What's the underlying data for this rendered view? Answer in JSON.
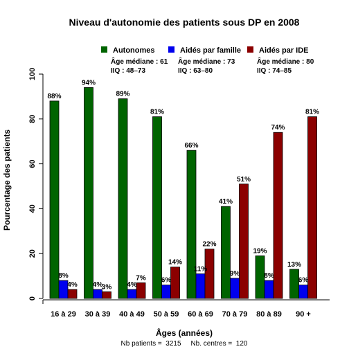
{
  "chart_data": {
    "type": "bar",
    "title": "Niveau d'autonomie des patients sous DP en 2008",
    "xlabel": "Âges (années)",
    "ylabel": "Pourcentage des patients",
    "ylim": [
      0,
      100
    ],
    "yticks": [
      "0",
      "20",
      "40",
      "60",
      "80",
      "100"
    ],
    "categories": [
      "16 à 29",
      "30 à 39",
      "40 à 49",
      "50 à 59",
      "60 à 69",
      "70 à 79",
      "80 à 89",
      "90 +"
    ],
    "series": [
      {
        "name": "Autonomes",
        "color": "#006400",
        "values": [
          88,
          94,
          89,
          81,
          66,
          41,
          19,
          13
        ],
        "labels": [
          "88%",
          "94%",
          "89%",
          "81%",
          "66%",
          "41%",
          "19%",
          "13%"
        ],
        "median": "Âge médiane : 61",
        "iqr": "IIQ : 48–73"
      },
      {
        "name": "Aidés par famille",
        "color": "#0000ee",
        "values": [
          8,
          4,
          4,
          6,
          11,
          9,
          8,
          6
        ],
        "labels": [
          "8%",
          "4%",
          "4%",
          "6%",
          "11%",
          "9%",
          "8%",
          "6%"
        ],
        "median": "Âge médiane : 73",
        "iqr": "IIQ : 63–80"
      },
      {
        "name": "Aidés par IDE",
        "color": "#8b0000",
        "values": [
          4,
          3,
          7,
          14,
          22,
          51,
          74,
          81
        ],
        "labels": [
          "4%",
          "3%",
          "7%",
          "14%",
          "22%",
          "51%",
          "74%",
          "81%"
        ],
        "median": "Âge médiane : 80",
        "iqr": "IIQ : 74–85"
      }
    ],
    "legend_position": "top",
    "grid": false
  },
  "footer": "Nb patients =  3215     Nb. centres =  120"
}
